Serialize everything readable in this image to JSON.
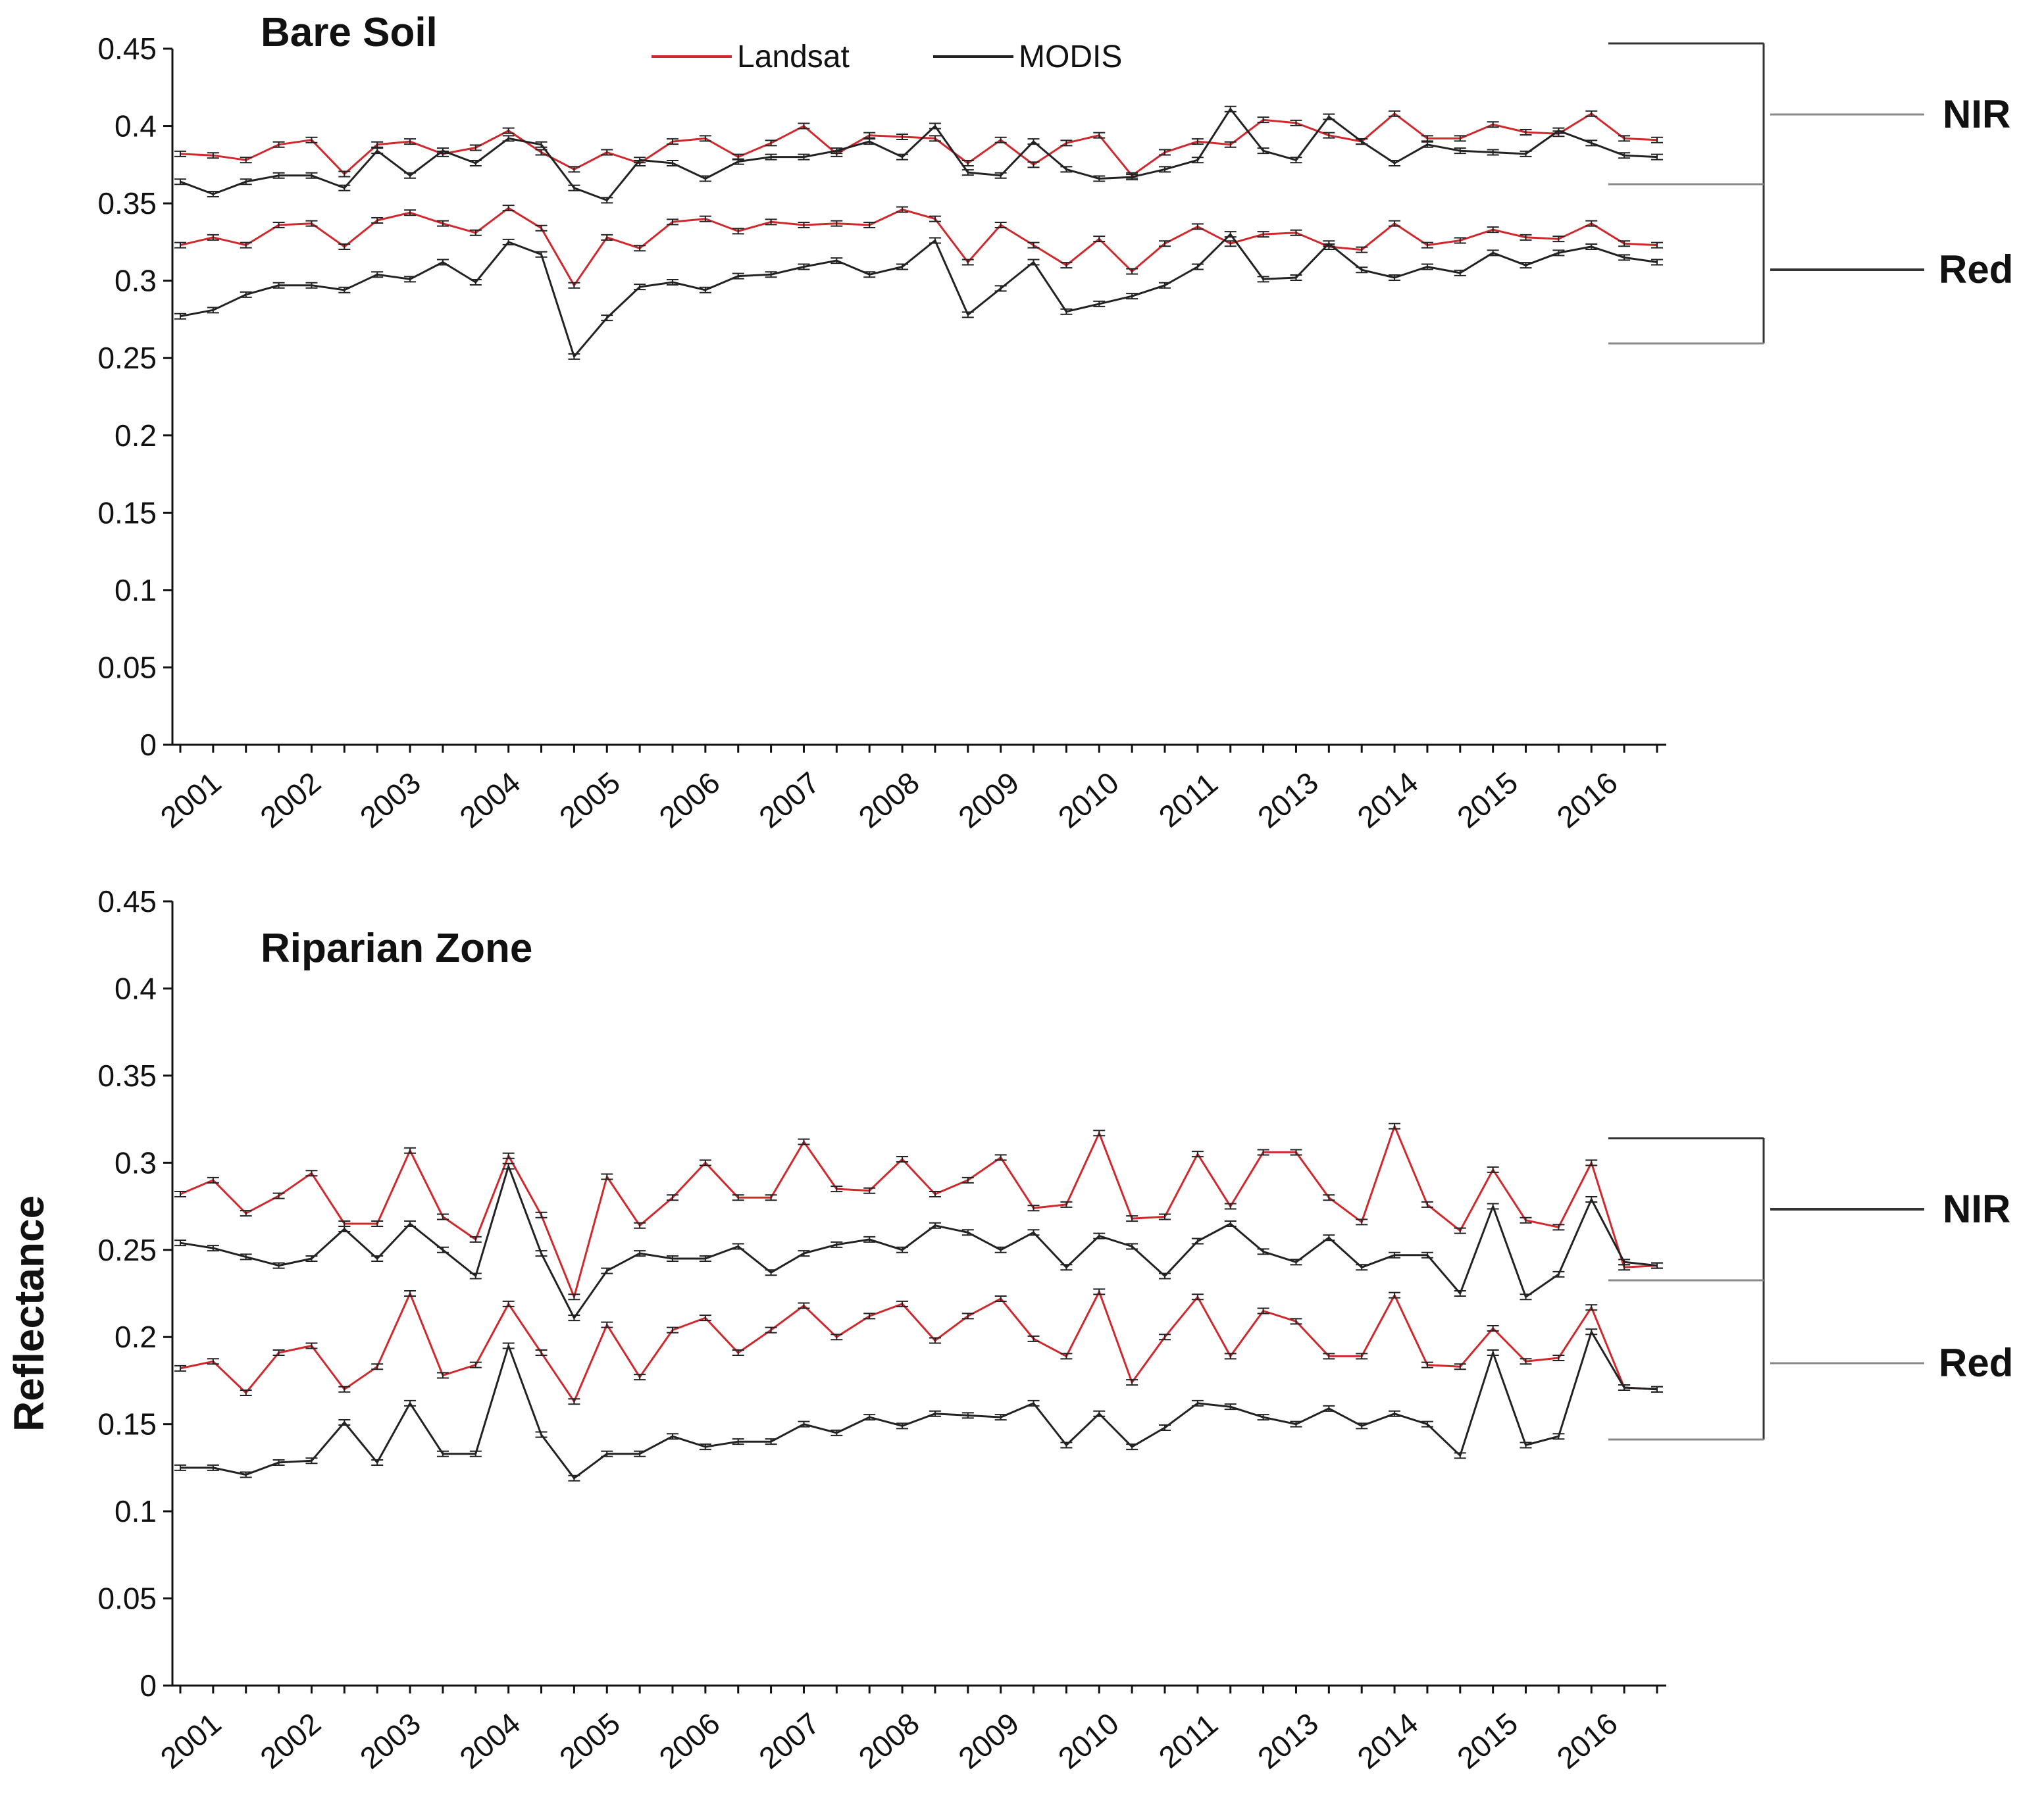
{
  "figure": {
    "y_axis_label": "Reflectance",
    "legend": [
      {
        "name": "Landsat",
        "color": "#d0282d"
      },
      {
        "name": "MODIS",
        "color": "#222222"
      }
    ]
  },
  "chart_data": [
    {
      "type": "line",
      "title": "Bare Soil",
      "ylim": [
        0,
        0.45
      ],
      "yticks": [
        "0",
        "0.05",
        "0.1",
        "0.15",
        "0.2",
        "0.25",
        "0.3",
        "0.35",
        "0.4",
        "0.45"
      ],
      "xtick_labels": [
        "2001",
        "2002",
        "2003",
        "2004",
        "2005",
        "2006",
        "2007",
        "2008",
        "2009",
        "2010",
        "2011",
        "2013",
        "2014",
        "2015",
        "2016"
      ],
      "n_points": 46,
      "band_labels": [
        "NIR",
        "Red"
      ],
      "series": [
        {
          "name": "Landsat NIR",
          "color": "#d0282d",
          "values": [
            0.382,
            0.381,
            0.378,
            0.388,
            0.391,
            0.369,
            0.388,
            0.39,
            0.382,
            0.386,
            0.397,
            0.383,
            0.372,
            0.383,
            0.376,
            0.39,
            0.392,
            0.38,
            0.389,
            0.4,
            0.382,
            0.394,
            0.393,
            0.392,
            0.376,
            0.391,
            0.375,
            0.389,
            0.394,
            0.368,
            0.383,
            0.39,
            0.388,
            0.404,
            0.402,
            0.394,
            0.39,
            0.408,
            0.392,
            0.392,
            0.401,
            0.396,
            0.395,
            0.408,
            0.392,
            0.391
          ]
        },
        {
          "name": "MODIS NIR",
          "color": "#222222",
          "values": [
            0.364,
            0.356,
            0.364,
            0.368,
            0.368,
            0.36,
            0.384,
            0.368,
            0.384,
            0.376,
            0.392,
            0.388,
            0.36,
            0.352,
            0.378,
            0.376,
            0.366,
            0.377,
            0.38,
            0.38,
            0.384,
            0.39,
            0.38,
            0.4,
            0.37,
            0.368,
            0.39,
            0.372,
            0.366,
            0.367,
            0.372,
            0.378,
            0.411,
            0.384,
            0.378,
            0.406,
            0.39,
            0.376,
            0.388,
            0.384,
            0.383,
            0.382,
            0.397,
            0.389,
            0.381,
            0.38
          ]
        },
        {
          "name": "Landsat Red",
          "color": "#d0282d",
          "values": [
            0.323,
            0.328,
            0.323,
            0.336,
            0.337,
            0.322,
            0.339,
            0.344,
            0.337,
            0.331,
            0.347,
            0.334,
            0.297,
            0.328,
            0.321,
            0.338,
            0.34,
            0.332,
            0.338,
            0.336,
            0.337,
            0.336,
            0.346,
            0.34,
            0.312,
            0.336,
            0.323,
            0.31,
            0.327,
            0.306,
            0.324,
            0.335,
            0.324,
            0.33,
            0.331,
            0.322,
            0.32,
            0.337,
            0.323,
            0.326,
            0.333,
            0.328,
            0.327,
            0.337,
            0.324,
            0.323
          ]
        },
        {
          "name": "MODIS Red",
          "color": "#222222",
          "values": [
            0.277,
            0.281,
            0.291,
            0.297,
            0.297,
            0.294,
            0.304,
            0.301,
            0.312,
            0.299,
            0.325,
            0.317,
            0.251,
            0.276,
            0.296,
            0.299,
            0.294,
            0.303,
            0.304,
            0.309,
            0.313,
            0.304,
            0.309,
            0.326,
            0.278,
            0.295,
            0.312,
            0.28,
            0.285,
            0.29,
            0.297,
            0.309,
            0.33,
            0.301,
            0.302,
            0.324,
            0.307,
            0.302,
            0.309,
            0.305,
            0.318,
            0.31,
            0.318,
            0.322,
            0.315,
            0.312
          ]
        }
      ]
    },
    {
      "type": "line",
      "title": "Riparian Zone",
      "ylim": [
        0,
        0.45
      ],
      "yticks": [
        "0",
        "0.05",
        "0.1",
        "0.15",
        "0.2",
        "0.25",
        "0.3",
        "0.35",
        "0.4",
        "0.45"
      ],
      "xtick_labels": [
        "2001",
        "2002",
        "2003",
        "2004",
        "2005",
        "2006",
        "2007",
        "2008",
        "2009",
        "2010",
        "2011",
        "2013",
        "2014",
        "2015",
        "2016"
      ],
      "n_points": 46,
      "band_labels": [
        "NIR",
        "Red"
      ],
      "series": [
        {
          "name": "Landsat NIR",
          "color": "#d0282d",
          "values": [
            0.282,
            0.29,
            0.271,
            0.281,
            0.294,
            0.265,
            0.265,
            0.307,
            0.269,
            0.256,
            0.304,
            0.27,
            0.223,
            0.292,
            0.264,
            0.28,
            0.3,
            0.28,
            0.28,
            0.312,
            0.285,
            0.284,
            0.302,
            0.282,
            0.29,
            0.303,
            0.274,
            0.276,
            0.317,
            0.268,
            0.269,
            0.305,
            0.275,
            0.306,
            0.306,
            0.28,
            0.266,
            0.321,
            0.276,
            0.261,
            0.296,
            0.267,
            0.263,
            0.3,
            0.24,
            0.241
          ]
        },
        {
          "name": "MODIS NIR",
          "color": "#222222",
          "values": [
            0.254,
            0.251,
            0.246,
            0.241,
            0.245,
            0.262,
            0.245,
            0.265,
            0.25,
            0.235,
            0.298,
            0.248,
            0.211,
            0.238,
            0.248,
            0.245,
            0.245,
            0.252,
            0.237,
            0.248,
            0.253,
            0.256,
            0.25,
            0.264,
            0.26,
            0.25,
            0.26,
            0.24,
            0.258,
            0.252,
            0.235,
            0.255,
            0.265,
            0.249,
            0.243,
            0.257,
            0.24,
            0.247,
            0.247,
            0.225,
            0.275,
            0.223,
            0.236,
            0.279,
            0.243,
            0.241
          ]
        },
        {
          "name": "Landsat Red",
          "color": "#d0282d",
          "values": [
            0.182,
            0.186,
            0.168,
            0.191,
            0.195,
            0.17,
            0.183,
            0.225,
            0.178,
            0.184,
            0.219,
            0.191,
            0.163,
            0.207,
            0.177,
            0.204,
            0.211,
            0.191,
            0.204,
            0.218,
            0.2,
            0.212,
            0.219,
            0.198,
            0.212,
            0.222,
            0.199,
            0.189,
            0.226,
            0.174,
            0.2,
            0.223,
            0.189,
            0.215,
            0.209,
            0.189,
            0.189,
            0.224,
            0.184,
            0.183,
            0.205,
            0.186,
            0.188,
            0.217,
            0.171,
            0.17
          ]
        },
        {
          "name": "MODIS Red",
          "color": "#222222",
          "values": [
            0.125,
            0.125,
            0.121,
            0.128,
            0.129,
            0.151,
            0.128,
            0.162,
            0.133,
            0.133,
            0.195,
            0.144,
            0.119,
            0.133,
            0.133,
            0.143,
            0.137,
            0.14,
            0.14,
            0.15,
            0.145,
            0.154,
            0.149,
            0.156,
            0.155,
            0.154,
            0.162,
            0.138,
            0.156,
            0.137,
            0.148,
            0.162,
            0.16,
            0.154,
            0.15,
            0.159,
            0.149,
            0.156,
            0.15,
            0.132,
            0.191,
            0.138,
            0.143,
            0.203,
            0.171,
            0.17
          ]
        }
      ]
    }
  ]
}
